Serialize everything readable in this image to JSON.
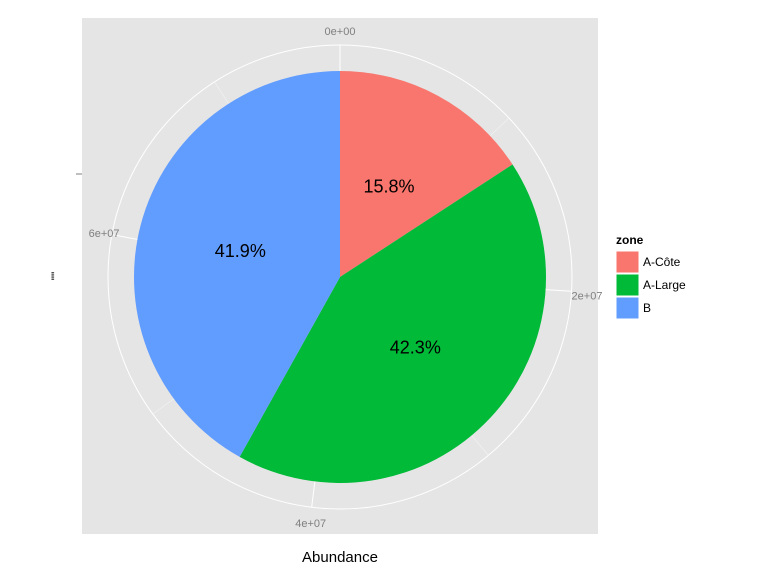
{
  "chart_data": {
    "type": "pie",
    "coord": "polar",
    "x_axis_label": "Abundance",
    "y_axis_label": "\"\"",
    "legend_title": "zone",
    "legend_position": "right",
    "grid": true,
    "background": "#e5e5e5",
    "theta_range": [
      0,
      77000000
    ],
    "theta_ticks": [
      "0e+00",
      "2e+07",
      "4e+07",
      "6e+07"
    ],
    "theta_tick_values": [
      0,
      20000000,
      40000000,
      60000000
    ],
    "slices": [
      {
        "name": "A-Côte",
        "value": 12166000,
        "label": "15.8%",
        "color": "#f8766d"
      },
      {
        "name": "A-Large",
        "value": 32571000,
        "label": "42.3%",
        "color": "#00ba38"
      },
      {
        "name": "B",
        "value": 32263000,
        "label": "41.9%",
        "color": "#619cff"
      }
    ]
  }
}
